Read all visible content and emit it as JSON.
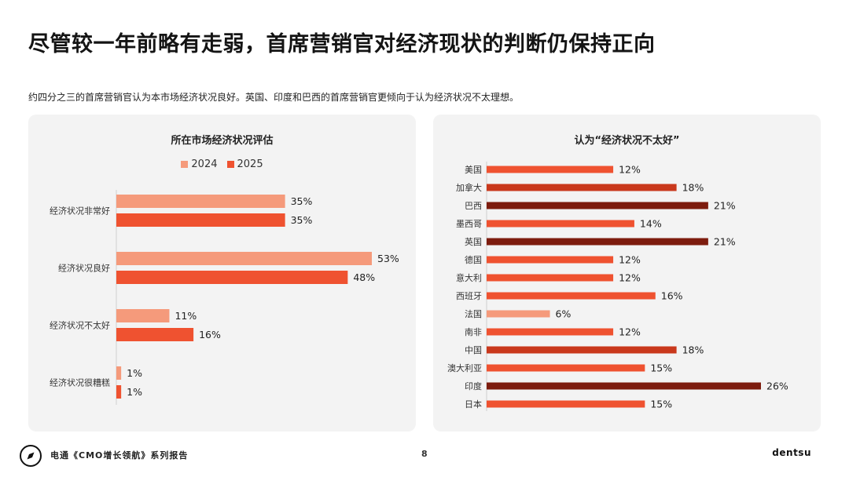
{
  "page": {
    "title": "尽管较一年前略有走弱，首席营销官对经济现状的判断仍保持正向",
    "subtitle": "约四分之三的首席营销官认为本市场经济状况良好。英国、印度和巴西的首席营销官更倾向于认为经济状况不太理想。",
    "footer_text": "电通《CMO增长领航》系列报告",
    "page_number": "8",
    "brand": "dentsu"
  },
  "colors": {
    "series_2024": "#f59a7b",
    "series_2025": "#ef5230",
    "country_light": "#f59a7b",
    "country_mid": "#ef5230",
    "country_dark": "#c9381c",
    "country_darkest": "#7d1c0e",
    "panel_bg": "#f3f3f3"
  },
  "chart_data": [
    {
      "type": "bar",
      "orientation": "horizontal",
      "title": "所在市场经济状况评估",
      "categories": [
        "经济状况非常好",
        "经济状况良好",
        "经济状况不太好",
        "经济状况很糟糕"
      ],
      "series": [
        {
          "name": "2024",
          "values": [
            35,
            53,
            11,
            1
          ]
        },
        {
          "name": "2025",
          "values": [
            35,
            48,
            16,
            1
          ]
        }
      ],
      "value_labels": [
        [
          "35%",
          "53%",
          "11%",
          "1%"
        ],
        [
          "35%",
          "48%",
          "16%",
          "1%"
        ]
      ],
      "unit": "%",
      "legend_position": "top-center",
      "xlim": [
        0,
        60
      ],
      "grid": false
    },
    {
      "type": "bar",
      "orientation": "horizontal",
      "title": "认为“经济状况不太好”",
      "categories": [
        "美国",
        "加拿大",
        "巴西",
        "墨西哥",
        "英国",
        "德国",
        "意大利",
        "西班牙",
        "法国",
        "南非",
        "中国",
        "澳大利亚",
        "印度",
        "日本"
      ],
      "values": [
        12,
        18,
        21,
        14,
        21,
        12,
        12,
        16,
        6,
        12,
        18,
        15,
        26,
        15
      ],
      "value_labels": [
        "12%",
        "18%",
        "21%",
        "14%",
        "21%",
        "12%",
        "12%",
        "16%",
        "6%",
        "12%",
        "18%",
        "15%",
        "26%",
        "15%"
      ],
      "unit": "%",
      "xlim": [
        0,
        30
      ],
      "grid": false
    }
  ]
}
